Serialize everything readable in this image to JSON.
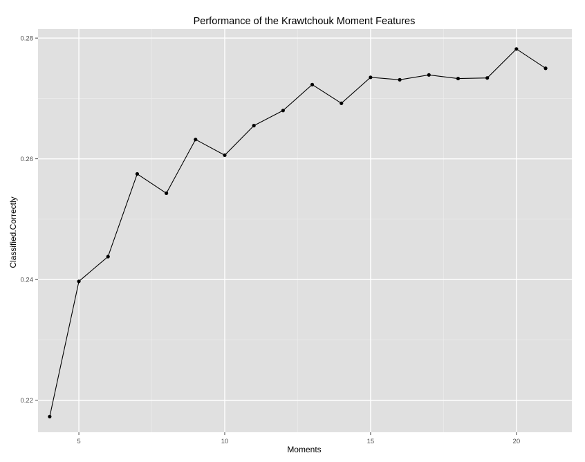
{
  "chart_data": {
    "type": "line",
    "title": "Performance of the Krawtchouk Moment Features",
    "xlabel": "Moments",
    "ylabel": "Classified.Correctly",
    "x": [
      4,
      5,
      6,
      7,
      8,
      9,
      10,
      11,
      12,
      13,
      14,
      15,
      16,
      17,
      18,
      19,
      20,
      21
    ],
    "y": [
      0.2173,
      0.2397,
      0.2438,
      0.2575,
      0.2543,
      0.2632,
      0.2606,
      0.2655,
      0.268,
      0.2723,
      0.2692,
      0.2735,
      0.2731,
      0.2739,
      0.2733,
      0.2734,
      0.2782,
      0.275
    ],
    "xlim": [
      3.6,
      21.9
    ],
    "ylim": [
      0.2147,
      0.2815
    ],
    "x_ticks": [
      5,
      10,
      15,
      20
    ],
    "x_tick_labels": [
      "5",
      "10",
      "15",
      "20"
    ],
    "y_ticks": [
      0.22,
      0.24,
      0.26,
      0.28
    ],
    "y_tick_labels": [
      "0.22",
      "0.24",
      "0.26",
      "0.28"
    ],
    "grid": true,
    "legend": "none",
    "colors": {
      "panel_background": "#e0e0e0",
      "grid_major": "#ffffff",
      "grid_minor": "#ececec",
      "line": "#000000",
      "point": "#000000",
      "tick_label": "#4d4d4d"
    }
  }
}
